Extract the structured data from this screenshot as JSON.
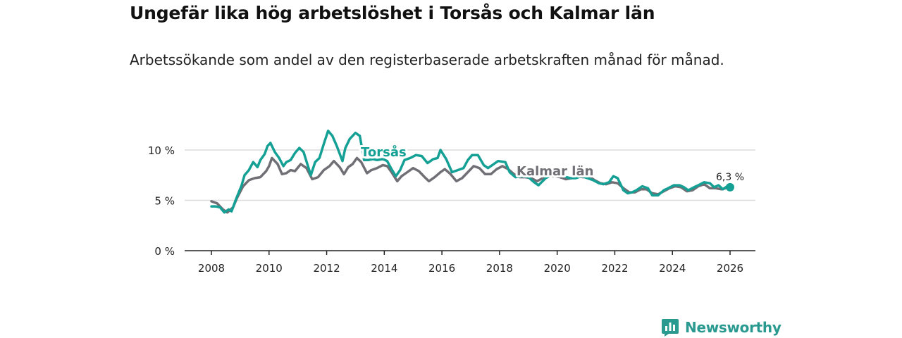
{
  "header": {
    "title": "Ungefär lika hög arbetslöshet i Torsås och Kalmar län",
    "subtitle": "Arbetssökande som andel av den registerbaserade arbetskraften månad för månad."
  },
  "brand": {
    "name": "Newsworthy"
  },
  "colors": {
    "torsas": "#15a095",
    "kalmar": "#6f6f75",
    "grid": "#dcdcdc",
    "axis": "#222222"
  },
  "chart_data": {
    "type": "line",
    "title": "Ungefär lika hög arbetslöshet i Torsås och Kalmar län",
    "subtitle": "Arbetssökande som andel av den registerbaserade arbetskraften månad för månad.",
    "xlabel": "",
    "ylabel": "",
    "xlim": [
      2007.75,
      2027
    ],
    "ylim": [
      0,
      12
    ],
    "x_ticks": [
      2008,
      2010,
      2012,
      2014,
      2016,
      2018,
      2020,
      2022,
      2024,
      2026
    ],
    "x_tick_labels": [
      "2008",
      "2010",
      "2012",
      "2014",
      "2016",
      "2018",
      "2020",
      "2022",
      "2024",
      "2026"
    ],
    "y_ticks": [
      0,
      5,
      10
    ],
    "y_tick_labels": [
      "0 %",
      "5 %",
      "10 %"
    ],
    "grid": true,
    "series": [
      {
        "name": "Kalmar län",
        "label": "Kalmar län",
        "color": "#6f6f75",
        "points": [
          [
            2008.0,
            4.9
          ],
          [
            2008.2,
            4.7
          ],
          [
            2008.4,
            4.1
          ],
          [
            2008.55,
            3.8
          ],
          [
            2008.75,
            4.3
          ],
          [
            2008.9,
            5.3
          ],
          [
            2009.1,
            6.4
          ],
          [
            2009.3,
            7.0
          ],
          [
            2009.5,
            7.2
          ],
          [
            2009.7,
            7.3
          ],
          [
            2009.9,
            7.9
          ],
          [
            2010.0,
            8.4
          ],
          [
            2010.1,
            9.2
          ],
          [
            2010.3,
            8.6
          ],
          [
            2010.45,
            7.6
          ],
          [
            2010.6,
            7.7
          ],
          [
            2010.75,
            8.0
          ],
          [
            2010.9,
            7.9
          ],
          [
            2011.1,
            8.6
          ],
          [
            2011.3,
            8.2
          ],
          [
            2011.5,
            7.1
          ],
          [
            2011.7,
            7.3
          ],
          [
            2011.9,
            8.0
          ],
          [
            2012.1,
            8.4
          ],
          [
            2012.25,
            8.9
          ],
          [
            2012.45,
            8.3
          ],
          [
            2012.6,
            7.6
          ],
          [
            2012.75,
            8.3
          ],
          [
            2012.9,
            8.6
          ],
          [
            2013.05,
            9.2
          ],
          [
            2013.2,
            8.8
          ],
          [
            2013.4,
            7.7
          ],
          [
            2013.55,
            8.0
          ],
          [
            2013.75,
            8.2
          ],
          [
            2013.95,
            8.5
          ],
          [
            2014.1,
            8.4
          ],
          [
            2014.25,
            7.8
          ],
          [
            2014.45,
            6.9
          ],
          [
            2014.6,
            7.4
          ],
          [
            2014.8,
            7.8
          ],
          [
            2015.0,
            8.2
          ],
          [
            2015.2,
            7.9
          ],
          [
            2015.4,
            7.3
          ],
          [
            2015.55,
            6.9
          ],
          [
            2015.75,
            7.3
          ],
          [
            2015.95,
            7.8
          ],
          [
            2016.1,
            8.1
          ],
          [
            2016.3,
            7.6
          ],
          [
            2016.5,
            6.9
          ],
          [
            2016.7,
            7.2
          ],
          [
            2016.9,
            7.8
          ],
          [
            2017.1,
            8.4
          ],
          [
            2017.3,
            8.2
          ],
          [
            2017.5,
            7.6
          ],
          [
            2017.7,
            7.6
          ],
          [
            2017.9,
            8.1
          ],
          [
            2018.1,
            8.4
          ],
          [
            2018.3,
            8.1
          ],
          [
            2018.5,
            7.6
          ],
          [
            2018.7,
            7.3
          ],
          [
            2018.9,
            7.3
          ],
          [
            2019.1,
            7.2
          ],
          [
            2019.3,
            6.9
          ],
          [
            2019.5,
            7.2
          ],
          [
            2019.7,
            7.4
          ],
          [
            2019.9,
            7.4
          ],
          [
            2020.1,
            7.3
          ],
          [
            2020.3,
            7.1
          ],
          [
            2020.5,
            7.2
          ],
          [
            2020.7,
            7.4
          ],
          [
            2020.9,
            7.3
          ],
          [
            2021.1,
            7.4
          ],
          [
            2021.3,
            7.0
          ],
          [
            2021.5,
            6.7
          ],
          [
            2021.7,
            6.6
          ],
          [
            2021.9,
            6.8
          ],
          [
            2022.1,
            6.7
          ],
          [
            2022.3,
            6.2
          ],
          [
            2022.5,
            5.8
          ],
          [
            2022.7,
            5.8
          ],
          [
            2022.9,
            6.1
          ],
          [
            2023.1,
            6.1
          ],
          [
            2023.3,
            5.7
          ],
          [
            2023.5,
            5.6
          ],
          [
            2023.7,
            5.9
          ],
          [
            2023.9,
            6.2
          ],
          [
            2024.1,
            6.4
          ],
          [
            2024.3,
            6.3
          ],
          [
            2024.5,
            5.9
          ],
          [
            2024.7,
            6.0
          ],
          [
            2024.9,
            6.4
          ],
          [
            2025.1,
            6.6
          ],
          [
            2025.3,
            6.2
          ],
          [
            2025.5,
            6.2
          ],
          [
            2025.7,
            6.1
          ],
          [
            2025.85,
            6.2
          ],
          [
            2026.0,
            6.3
          ]
        ]
      },
      {
        "name": "Torsås",
        "label": "Torsås",
        "color": "#15a095",
        "points": [
          [
            2008.0,
            4.4
          ],
          [
            2008.15,
            4.4
          ],
          [
            2008.3,
            4.3
          ],
          [
            2008.45,
            3.8
          ],
          [
            2008.6,
            4.1
          ],
          [
            2008.7,
            3.9
          ],
          [
            2008.85,
            5.1
          ],
          [
            2009.05,
            6.5
          ],
          [
            2009.15,
            7.5
          ],
          [
            2009.3,
            8.0
          ],
          [
            2009.45,
            8.8
          ],
          [
            2009.6,
            8.3
          ],
          [
            2009.7,
            9.0
          ],
          [
            2009.85,
            9.6
          ],
          [
            2009.95,
            10.4
          ],
          [
            2010.05,
            10.7
          ],
          [
            2010.2,
            9.8
          ],
          [
            2010.35,
            9.2
          ],
          [
            2010.5,
            8.4
          ],
          [
            2010.6,
            8.8
          ],
          [
            2010.75,
            9.0
          ],
          [
            2010.9,
            9.7
          ],
          [
            2011.05,
            10.2
          ],
          [
            2011.2,
            9.8
          ],
          [
            2011.35,
            8.4
          ],
          [
            2011.45,
            7.5
          ],
          [
            2011.6,
            8.8
          ],
          [
            2011.75,
            9.2
          ],
          [
            2011.9,
            10.6
          ],
          [
            2012.05,
            11.9
          ],
          [
            2012.2,
            11.4
          ],
          [
            2012.35,
            10.4
          ],
          [
            2012.55,
            8.9
          ],
          [
            2012.65,
            10.2
          ],
          [
            2012.8,
            11.1
          ],
          [
            2013.0,
            11.7
          ],
          [
            2013.15,
            11.4
          ],
          [
            2013.3,
            9.0
          ],
          [
            2013.45,
            9.0
          ],
          [
            2013.6,
            9.1
          ],
          [
            2013.75,
            9.0
          ],
          [
            2013.95,
            9.1
          ],
          [
            2014.1,
            8.9
          ],
          [
            2014.25,
            8.1
          ],
          [
            2014.4,
            7.4
          ],
          [
            2014.55,
            8.0
          ],
          [
            2014.7,
            9.0
          ],
          [
            2014.9,
            9.2
          ],
          [
            2015.1,
            9.5
          ],
          [
            2015.3,
            9.4
          ],
          [
            2015.5,
            8.7
          ],
          [
            2015.7,
            9.1
          ],
          [
            2015.85,
            9.2
          ],
          [
            2015.95,
            10.0
          ],
          [
            2016.15,
            9.1
          ],
          [
            2016.35,
            7.8
          ],
          [
            2016.55,
            8.0
          ],
          [
            2016.75,
            8.2
          ],
          [
            2016.9,
            9.0
          ],
          [
            2017.05,
            9.5
          ],
          [
            2017.25,
            9.5
          ],
          [
            2017.45,
            8.5
          ],
          [
            2017.6,
            8.2
          ],
          [
            2017.8,
            8.6
          ],
          [
            2017.95,
            8.9
          ],
          [
            2018.2,
            8.8
          ],
          [
            2018.35,
            7.8
          ],
          [
            2018.55,
            7.3
          ],
          [
            2018.8,
            7.4
          ],
          [
            2019.0,
            7.3
          ],
          [
            2019.2,
            6.8
          ],
          [
            2019.35,
            6.5
          ],
          [
            2019.6,
            7.2
          ],
          [
            2019.8,
            7.5
          ],
          [
            2020.0,
            7.6
          ],
          [
            2020.2,
            7.4
          ],
          [
            2020.45,
            7.2
          ],
          [
            2020.65,
            7.2
          ],
          [
            2020.85,
            7.4
          ],
          [
            2021.05,
            7.2
          ],
          [
            2021.25,
            7.0
          ],
          [
            2021.45,
            6.7
          ],
          [
            2021.6,
            6.6
          ],
          [
            2021.8,
            6.8
          ],
          [
            2021.95,
            7.4
          ],
          [
            2022.1,
            7.2
          ],
          [
            2022.3,
            6.0
          ],
          [
            2022.45,
            5.7
          ],
          [
            2022.6,
            5.8
          ],
          [
            2022.75,
            6.0
          ],
          [
            2022.95,
            6.4
          ],
          [
            2023.15,
            6.2
          ],
          [
            2023.3,
            5.5
          ],
          [
            2023.5,
            5.5
          ],
          [
            2023.7,
            6.0
          ],
          [
            2023.85,
            6.2
          ],
          [
            2024.05,
            6.5
          ],
          [
            2024.25,
            6.5
          ],
          [
            2024.4,
            6.3
          ],
          [
            2024.55,
            6.0
          ],
          [
            2024.75,
            6.3
          ],
          [
            2024.9,
            6.5
          ],
          [
            2025.1,
            6.8
          ],
          [
            2025.3,
            6.7
          ],
          [
            2025.45,
            6.3
          ],
          [
            2025.6,
            6.5
          ],
          [
            2025.75,
            6.1
          ],
          [
            2025.9,
            6.4
          ],
          [
            2026.0,
            6.3
          ]
        ]
      }
    ],
    "annotations": [
      {
        "text": "6,3 %",
        "x": 2026.0,
        "y": 6.3,
        "series": "Torsås"
      }
    ]
  }
}
